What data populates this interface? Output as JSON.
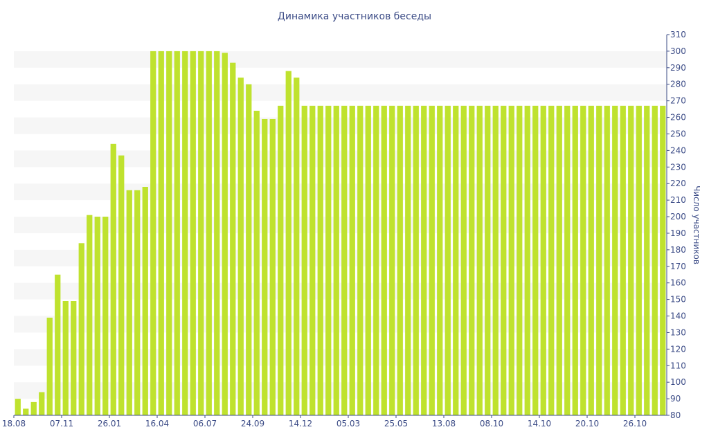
{
  "chart_data": {
    "type": "bar",
    "title": "Динамика участников беседы",
    "xlabel": "",
    "ylabel": "Число участников",
    "ylim": [
      80,
      310
    ],
    "ytick_values": [
      80,
      90,
      100,
      110,
      120,
      130,
      140,
      150,
      160,
      170,
      180,
      190,
      200,
      210,
      220,
      230,
      240,
      250,
      260,
      270,
      280,
      290,
      300,
      310
    ],
    "x_tick_labels": [
      {
        "label": "18.08",
        "index": 0
      },
      {
        "label": "07.11",
        "index": 6
      },
      {
        "label": "26.01",
        "index": 12
      },
      {
        "label": "16.04",
        "index": 18
      },
      {
        "label": "06.07",
        "index": 24
      },
      {
        "label": "24.09",
        "index": 30
      },
      {
        "label": "14.12",
        "index": 36
      },
      {
        "label": "05.03",
        "index": 42
      },
      {
        "label": "25.05",
        "index": 48
      },
      {
        "label": "13.08",
        "index": 54
      },
      {
        "label": "08.10",
        "index": 60
      },
      {
        "label": "14.10",
        "index": 66
      },
      {
        "label": "20.10",
        "index": 72
      },
      {
        "label": "26.10",
        "index": 78
      }
    ],
    "values": [
      90,
      84,
      88,
      94,
      139,
      165,
      149,
      149,
      184,
      201,
      200,
      200,
      244,
      237,
      216,
      216,
      218,
      300,
      300,
      300,
      300,
      300,
      300,
      300,
      300,
      300,
      299,
      293,
      284,
      280,
      264,
      259,
      259,
      267,
      288,
      284,
      267,
      267,
      267,
      267,
      267,
      267,
      267,
      267,
      267,
      267,
      267,
      267,
      267,
      267,
      267,
      267,
      267,
      267,
      267,
      267,
      267,
      267,
      267,
      267,
      267,
      267,
      267,
      267,
      267,
      267,
      267,
      267,
      267,
      267,
      267,
      267,
      267,
      267,
      267,
      267,
      267,
      267,
      267,
      267,
      267,
      267
    ],
    "grid": "alternating horizontal bands",
    "legend": "none",
    "colors": {
      "bar": "#bfe22e",
      "band": "#f6f6f6",
      "text": "#3b4b86",
      "axis": "#3b4b86"
    }
  }
}
